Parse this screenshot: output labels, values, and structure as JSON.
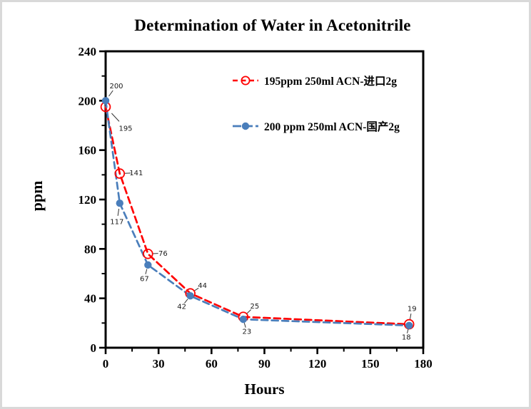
{
  "chart_data": {
    "type": "line",
    "title": "Determination of Water in Acetonitrile",
    "xlabel": "Hours",
    "ylabel": "ppm",
    "xlim": [
      0,
      180
    ],
    "ylim": [
      0,
      240
    ],
    "x_ticks": [
      0,
      30,
      60,
      90,
      120,
      150,
      180
    ],
    "y_ticks": [
      0,
      40,
      80,
      120,
      160,
      200,
      240
    ],
    "x_minor_step": 15,
    "y_minor_step": 20,
    "grid": false,
    "legend_position": "inside-top-right",
    "axis_color": "#000000",
    "series": [
      {
        "name": "195ppm  250ml ACN-进口2g",
        "color": "#ff0000",
        "marker": "open-circle",
        "line_style": "dashed",
        "x": [
          0,
          8,
          24,
          48,
          78,
          172
        ],
        "values": [
          195,
          141,
          76,
          44,
          25,
          19
        ],
        "data_labels": [
          "195",
          "141",
          "76",
          "44",
          "25",
          "19"
        ]
      },
      {
        "name": "200 ppm 250ml ACN-国产2g",
        "color": "#4a7ebb",
        "marker": "filled-circle",
        "line_style": "dashed",
        "x": [
          0,
          8,
          24,
          48,
          78,
          172
        ],
        "values": [
          200,
          117,
          67,
          42,
          23,
          18
        ],
        "data_labels": [
          "200",
          "117",
          "67",
          "42",
          "23",
          "18"
        ]
      }
    ]
  }
}
